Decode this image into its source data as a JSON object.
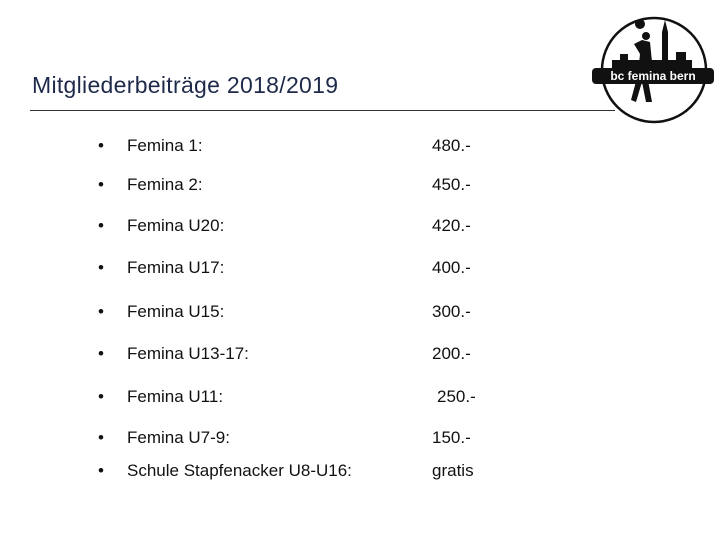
{
  "header": {
    "title": "Mitgliederbeiträge 2018/2019",
    "logo_text": "bc femina bern"
  },
  "table": {
    "rows": [
      [
        "Femina 1:",
        "480.-"
      ],
      [
        "Femina 2:",
        "450.-"
      ],
      [
        "Femina U20:",
        "420.-"
      ],
      [
        "Femina U17:",
        "400.-"
      ],
      [
        "Femina U15:",
        "300.-"
      ],
      [
        "Femina U13-17:",
        "200.-"
      ],
      [
        "Femina U11:",
        "250.-"
      ],
      [
        "Femina U7-9:",
        "150.-"
      ],
      [
        "Schule Stapfenacker U8-U16:",
        "gratis"
      ]
    ]
  }
}
